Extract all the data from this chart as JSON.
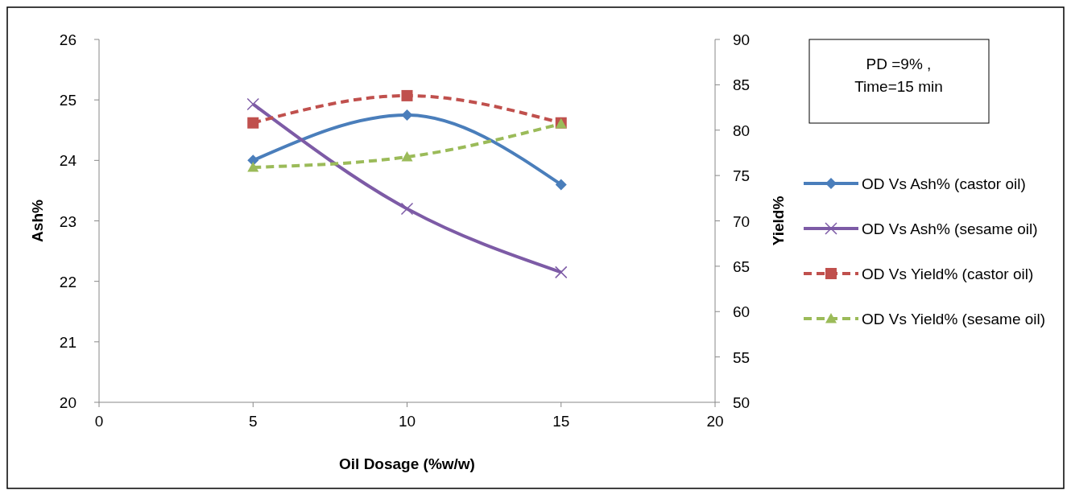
{
  "chart_data": {
    "type": "line",
    "xlabel": "Oil Dosage (%w/w)",
    "ylabel": "Ash%",
    "y2label": "Yield%",
    "x": [
      5,
      10,
      15
    ],
    "series": [
      {
        "name": "OD Vs Ash% (castor oil)",
        "color": "#4a7ebb",
        "values": [
          24.0,
          24.75,
          23.6
        ],
        "marker": "diamond",
        "line_style": "solid"
      },
      {
        "name": "OD Vs Ash% (sesame oil)",
        "color": "#7d5ba6",
        "values": [
          24.93,
          23.2,
          22.15
        ],
        "marker": "cross",
        "line_style": "solid"
      },
      {
        "name": "OD Vs Yield% (castor oil)",
        "color": "#c0504d",
        "values": [
          80.8,
          83.8,
          80.8
        ],
        "marker": "square",
        "line_style": "dashed",
        "axis": "y2"
      },
      {
        "name": "OD Vs Yield% (sesame oil)",
        "color": "#9bbb59",
        "values": [
          75.9,
          77.05,
          80.7
        ],
        "marker": "triangle",
        "line_style": "dashed",
        "axis": "y2"
      }
    ],
    "xlim": [
      0,
      20
    ],
    "xticks": [
      0,
      5,
      10,
      15,
      20
    ],
    "ylim": [
      20,
      26
    ],
    "yticks": [
      20,
      21,
      22,
      23,
      24,
      25,
      26
    ],
    "y2lim": [
      50,
      90
    ],
    "y2ticks": [
      50,
      55,
      60,
      65,
      70,
      75,
      80,
      85,
      90
    ],
    "legend": "right",
    "grid": false,
    "annotations": [
      "PD =9% ,\nTime=15 min"
    ]
  }
}
